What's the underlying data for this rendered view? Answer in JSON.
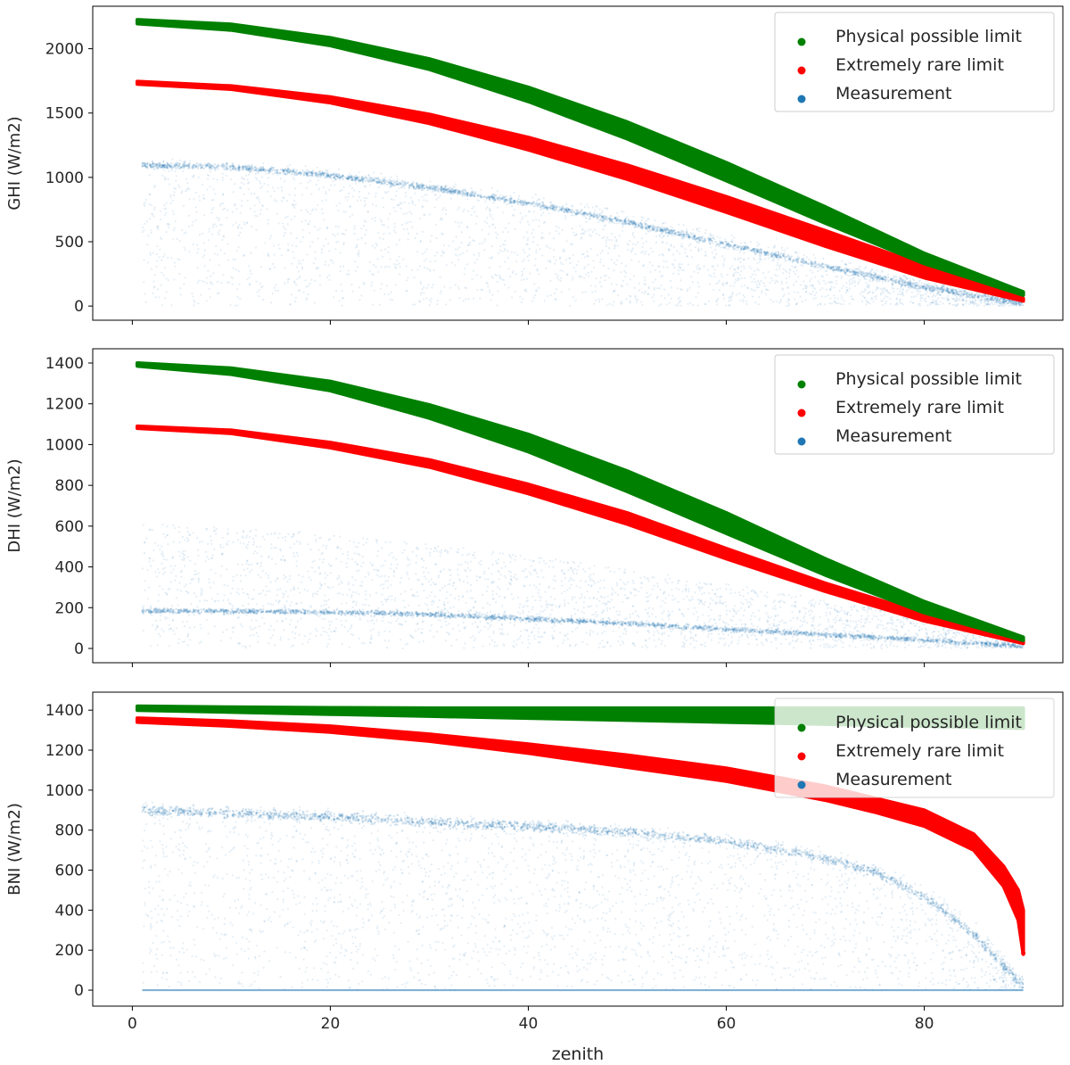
{
  "figure": {
    "xlabel": "zenith",
    "shared_x_ticks": [
      0,
      20,
      40,
      60,
      80
    ]
  },
  "colors": {
    "physical": "#008000",
    "extreme": "#ff0000",
    "measurement": "#1f77b4"
  },
  "legend": {
    "physical": "Physical possible limit",
    "extreme": "Extremely rare limit",
    "measurement": "Measurement"
  },
  "chart_data": [
    {
      "id": "ghi",
      "type": "scatter",
      "ylabel": "GHI (W/m2)",
      "xlim": [
        -4,
        94
      ],
      "ylim": [
        -110,
        2330
      ],
      "yticks": [
        0,
        500,
        1000,
        1500,
        2000
      ],
      "xticks": [
        0,
        20,
        40,
        60,
        80
      ],
      "show_xtick_labels": false,
      "legend_position": "top-right",
      "legend_alpha": 1,
      "series": [
        {
          "name": "Physical possible limit",
          "color": "#008000",
          "band": {
            "x": [
              0.5,
              10,
              20,
              30,
              40,
              50,
              60,
              70,
              80,
              90
            ],
            "upper": [
              2225,
              2190,
              2085,
              1920,
              1700,
              1430,
              1115,
              770,
              410,
              110
            ],
            "lower": [
              2195,
              2145,
              2025,
              1840,
              1590,
              1300,
              975,
              645,
              330,
              85
            ]
          }
        },
        {
          "name": "Extremely rare limit",
          "color": "#ff0000",
          "band": {
            "x": [
              0.5,
              10,
              20,
              30,
              40,
              50,
              60,
              70,
              80,
              90
            ],
            "upper": [
              1745,
              1710,
              1625,
              1490,
              1310,
              1095,
              850,
              585,
              315,
              60
            ],
            "lower": [
              1725,
              1685,
              1580,
              1420,
              1215,
              985,
              730,
              465,
              220,
              40
            ]
          }
        },
        {
          "name": "Measurement",
          "color": "#1f77b4",
          "clear_sky": {
            "x": [
              1,
              10,
              20,
              30,
              40,
              50,
              60,
              70,
              80,
              90
            ],
            "y": [
              1095,
              1080,
              1015,
              920,
              800,
              650,
              480,
              310,
              145,
              20
            ]
          },
          "cloud": {
            "x": [
              1,
              10,
              20,
              30,
              40,
              50,
              60,
              70,
              80,
              90
            ],
            "max": [
              1150,
              1130,
              1080,
              990,
              880,
              730,
              560,
              380,
              200,
              40
            ]
          }
        }
      ]
    },
    {
      "id": "dhi",
      "type": "scatter",
      "ylabel": "DHI (W/m2)",
      "xlim": [
        -4,
        94
      ],
      "ylim": [
        -70,
        1470
      ],
      "yticks": [
        0,
        200,
        400,
        600,
        800,
        1000,
        1200,
        1400
      ],
      "xticks": [
        0,
        20,
        40,
        60,
        80
      ],
      "show_xtick_labels": false,
      "legend_position": "top-right",
      "legend_alpha": 1,
      "series": [
        {
          "name": "Physical possible limit",
          "color": "#008000",
          "band": {
            "x": [
              0.5,
              10,
              20,
              30,
              40,
              50,
              60,
              70,
              80,
              90
            ],
            "upper": [
              1400,
              1375,
              1310,
              1195,
              1050,
              870,
              665,
              440,
              230,
              55
            ]
          },
          "band_lower": [
            1385,
            1345,
            1265,
            1130,
            965,
            770,
            565,
            360,
            175,
            40
          ]
        },
        {
          "name": "Extremely rare limit",
          "color": "#ff0000",
          "band": {
            "x": [
              0.5,
              10,
              20,
              30,
              40,
              50,
              60,
              70,
              80,
              90
            ],
            "upper": [
              1090,
              1070,
              1010,
              925,
              805,
              665,
              490,
              320,
              170,
              40
            ],
            "lower": [
              1080,
              1055,
              985,
              890,
              760,
              610,
              440,
              280,
              135,
              25
            ]
          }
        },
        {
          "name": "Measurement",
          "color": "#1f77b4",
          "clear_sky": {
            "x": [
              1,
              10,
              20,
              30,
              40,
              50,
              60,
              70,
              80,
              90
            ],
            "y": [
              185,
              182,
              178,
              168,
              145,
              122,
              95,
              68,
              42,
              10
            ]
          },
          "cloud": {
            "x": [
              1,
              10,
              20,
              30,
              40,
              50,
              60,
              70,
              80,
              90
            ],
            "max": [
              620,
              600,
              560,
              510,
              460,
              390,
              320,
              240,
              160,
              40
            ]
          }
        }
      ]
    },
    {
      "id": "bni",
      "type": "scatter",
      "ylabel": "BNI (W/m2)",
      "xlim": [
        -4,
        94
      ],
      "ylim": [
        -80,
        1490
      ],
      "yticks": [
        0,
        200,
        400,
        600,
        800,
        1000,
        1200,
        1400
      ],
      "xticks": [
        0,
        20,
        40,
        60,
        80
      ],
      "show_xtick_labels": true,
      "legend_position": "top-right",
      "legend_alpha": 0.8,
      "series": [
        {
          "name": "Physical possible limit",
          "color": "#008000",
          "band": {
            "x": [
              0.5,
              10,
              20,
              30,
              40,
              50,
              60,
              70,
              80,
              90
            ],
            "upper": [
              1420,
              1415,
              1412,
              1410,
              1410,
              1410,
              1410,
              1410,
              1410,
              1410
            ],
            "lower": [
              1400,
              1390,
              1380,
              1370,
              1360,
              1350,
              1340,
              1330,
              1320,
              1310
            ]
          }
        },
        {
          "name": "Extremely rare limit",
          "color": "#ff0000",
          "band": {
            "x": [
              0.5,
              10,
              20,
              30,
              40,
              50,
              60,
              70,
              75,
              80,
              85,
              88,
              89.5,
              90
            ],
            "upper": [
              1360,
              1345,
              1320,
              1280,
              1230,
              1175,
              1110,
              1020,
              960,
              900,
              780,
              620,
              500,
              400
            ],
            "lower": [
              1340,
              1320,
              1290,
              1245,
              1185,
              1115,
              1045,
              950,
              890,
              820,
              700,
              520,
              350,
              180
            ]
          }
        },
        {
          "name": "Measurement",
          "color": "#1f77b4",
          "clear_sky": {
            "x": [
              1,
              10,
              20,
              30,
              40,
              45,
              50,
              60,
              70,
              75,
              80,
              85,
              88,
              90
            ],
            "y": [
              900,
              885,
              865,
              840,
              820,
              805,
              790,
              745,
              660,
              590,
              470,
              280,
              120,
              20
            ]
          },
          "cloud": {
            "x": [
              1,
              10,
              20,
              30,
              40,
              50,
              60,
              70,
              80,
              85,
              90
            ],
            "max": [
              950,
              930,
              910,
              880,
              860,
              830,
              790,
              720,
              540,
              350,
              60
            ]
          }
        }
      ]
    }
  ]
}
